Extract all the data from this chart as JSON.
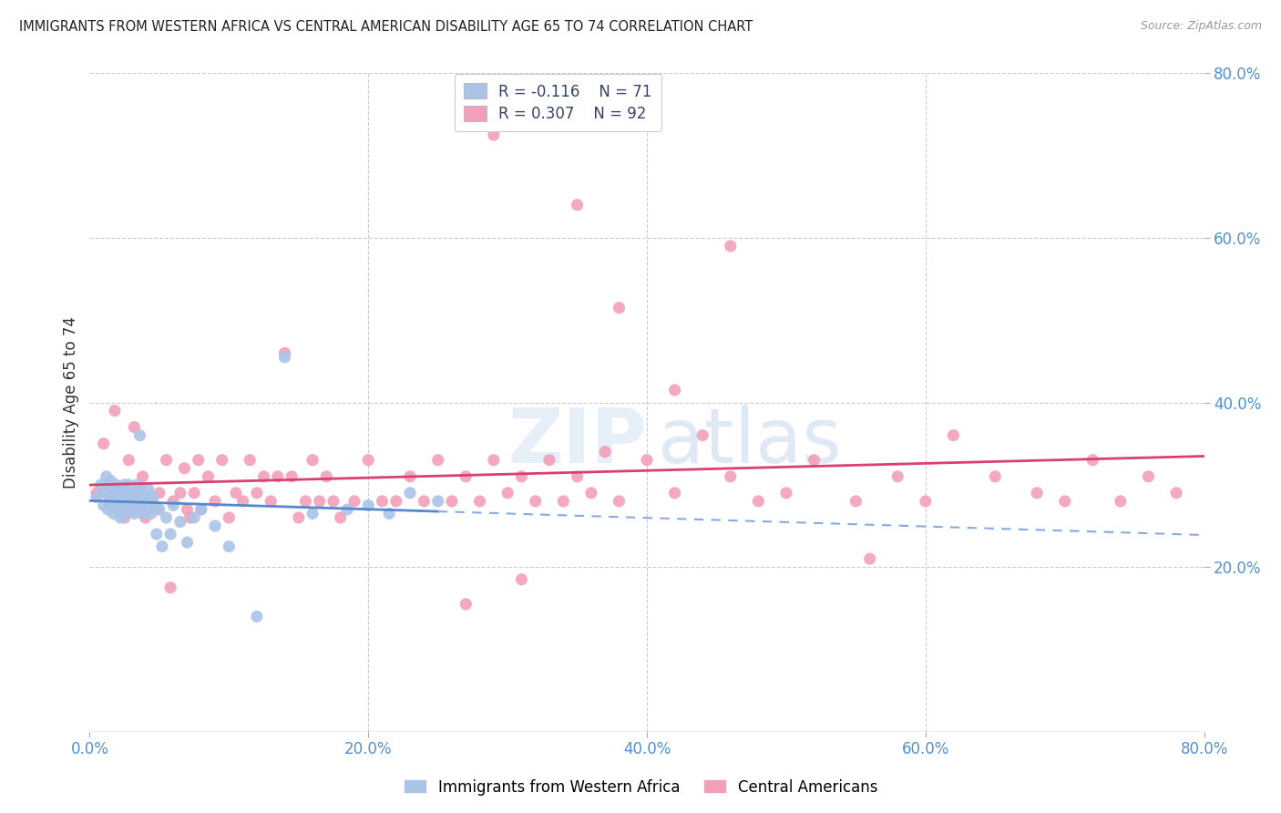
{
  "title": "IMMIGRANTS FROM WESTERN AFRICA VS CENTRAL AMERICAN DISABILITY AGE 65 TO 74 CORRELATION CHART",
  "source": "Source: ZipAtlas.com",
  "ylabel": "Disability Age 65 to 74",
  "xlim": [
    0.0,
    0.8
  ],
  "ylim": [
    0.0,
    0.8
  ],
  "x_ticks": [
    0.0,
    0.2,
    0.4,
    0.6,
    0.8
  ],
  "y_ticks": [
    0.2,
    0.4,
    0.6,
    0.8
  ],
  "x_tick_labels": [
    "0.0%",
    "20.0%",
    "40.0%",
    "60.0%",
    "80.0%"
  ],
  "right_y_tick_labels": [
    "20.0%",
    "40.0%",
    "60.0%",
    "80.0%"
  ],
  "color_blue": "#aac4e8",
  "color_pink": "#f2a0b8",
  "line_blue_solid": "#5588cc",
  "line_pink_solid": "#d94070",
  "line_blue_dashed": "#88aadd",
  "background_color": "#ffffff",
  "grid_color": "#cccccc",
  "blue_scatter_x": [
    0.005,
    0.008,
    0.01,
    0.011,
    0.012,
    0.013,
    0.014,
    0.015,
    0.015,
    0.016,
    0.017,
    0.018,
    0.018,
    0.019,
    0.02,
    0.02,
    0.021,
    0.022,
    0.022,
    0.023,
    0.024,
    0.024,
    0.025,
    0.025,
    0.026,
    0.026,
    0.027,
    0.028,
    0.028,
    0.029,
    0.03,
    0.03,
    0.031,
    0.032,
    0.032,
    0.033,
    0.034,
    0.034,
    0.035,
    0.036,
    0.036,
    0.037,
    0.038,
    0.039,
    0.04,
    0.041,
    0.042,
    0.043,
    0.044,
    0.045,
    0.046,
    0.048,
    0.05,
    0.052,
    0.055,
    0.058,
    0.06,
    0.065,
    0.07,
    0.075,
    0.08,
    0.09,
    0.1,
    0.12,
    0.14,
    0.16,
    0.185,
    0.2,
    0.215,
    0.23,
    0.25
  ],
  "blue_scatter_y": [
    0.285,
    0.3,
    0.275,
    0.29,
    0.31,
    0.27,
    0.285,
    0.295,
    0.305,
    0.28,
    0.265,
    0.29,
    0.275,
    0.3,
    0.27,
    0.285,
    0.295,
    0.26,
    0.28,
    0.275,
    0.285,
    0.295,
    0.27,
    0.3,
    0.28,
    0.265,
    0.29,
    0.275,
    0.3,
    0.285,
    0.27,
    0.295,
    0.28,
    0.265,
    0.29,
    0.275,
    0.285,
    0.3,
    0.27,
    0.295,
    0.36,
    0.28,
    0.265,
    0.275,
    0.285,
    0.27,
    0.295,
    0.28,
    0.265,
    0.285,
    0.275,
    0.24,
    0.27,
    0.225,
    0.26,
    0.24,
    0.275,
    0.255,
    0.23,
    0.26,
    0.27,
    0.25,
    0.225,
    0.14,
    0.455,
    0.265,
    0.27,
    0.275,
    0.265,
    0.29,
    0.28
  ],
  "pink_scatter_x": [
    0.005,
    0.01,
    0.015,
    0.018,
    0.022,
    0.025,
    0.028,
    0.03,
    0.032,
    0.035,
    0.038,
    0.04,
    0.042,
    0.045,
    0.048,
    0.05,
    0.055,
    0.058,
    0.06,
    0.065,
    0.068,
    0.07,
    0.072,
    0.075,
    0.078,
    0.08,
    0.085,
    0.09,
    0.095,
    0.1,
    0.105,
    0.11,
    0.115,
    0.12,
    0.125,
    0.13,
    0.135,
    0.14,
    0.145,
    0.15,
    0.155,
    0.16,
    0.165,
    0.17,
    0.175,
    0.18,
    0.19,
    0.2,
    0.21,
    0.22,
    0.23,
    0.24,
    0.25,
    0.26,
    0.27,
    0.28,
    0.29,
    0.3,
    0.31,
    0.32,
    0.33,
    0.34,
    0.35,
    0.36,
    0.37,
    0.38,
    0.4,
    0.42,
    0.44,
    0.46,
    0.48,
    0.5,
    0.52,
    0.55,
    0.58,
    0.6,
    0.62,
    0.65,
    0.68,
    0.7,
    0.72,
    0.74,
    0.76,
    0.78,
    0.38,
    0.42,
    0.46,
    0.35,
    0.29,
    0.56,
    0.31,
    0.27
  ],
  "pink_scatter_y": [
    0.29,
    0.35,
    0.28,
    0.39,
    0.28,
    0.26,
    0.33,
    0.27,
    0.37,
    0.29,
    0.31,
    0.26,
    0.27,
    0.28,
    0.27,
    0.29,
    0.33,
    0.175,
    0.28,
    0.29,
    0.32,
    0.27,
    0.26,
    0.29,
    0.33,
    0.27,
    0.31,
    0.28,
    0.33,
    0.26,
    0.29,
    0.28,
    0.33,
    0.29,
    0.31,
    0.28,
    0.31,
    0.46,
    0.31,
    0.26,
    0.28,
    0.33,
    0.28,
    0.31,
    0.28,
    0.26,
    0.28,
    0.33,
    0.28,
    0.28,
    0.31,
    0.28,
    0.33,
    0.28,
    0.31,
    0.28,
    0.33,
    0.29,
    0.31,
    0.28,
    0.33,
    0.28,
    0.31,
    0.29,
    0.34,
    0.28,
    0.33,
    0.29,
    0.36,
    0.31,
    0.28,
    0.29,
    0.33,
    0.28,
    0.31,
    0.28,
    0.36,
    0.31,
    0.29,
    0.28,
    0.33,
    0.28,
    0.31,
    0.29,
    0.515,
    0.415,
    0.59,
    0.64,
    0.725,
    0.21,
    0.185,
    0.155
  ],
  "blue_R": -0.116,
  "blue_N": 71,
  "pink_R": 0.307,
  "pink_N": 92,
  "blue_line_x_solid_end": 0.25,
  "blue_line_x_dashed_start": 0.25
}
